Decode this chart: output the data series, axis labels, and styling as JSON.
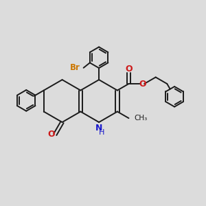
{
  "bg_color": "#dcdcdc",
  "bond_color": "#1a1a1a",
  "bond_width": 1.4,
  "N_color": "#1a1acc",
  "O_color": "#cc1a1a",
  "Br_color": "#cc7700",
  "figsize": [
    3.0,
    3.0
  ],
  "dpi": 100,
  "xlim": [
    0,
    10
  ],
  "ylim": [
    0,
    10
  ]
}
